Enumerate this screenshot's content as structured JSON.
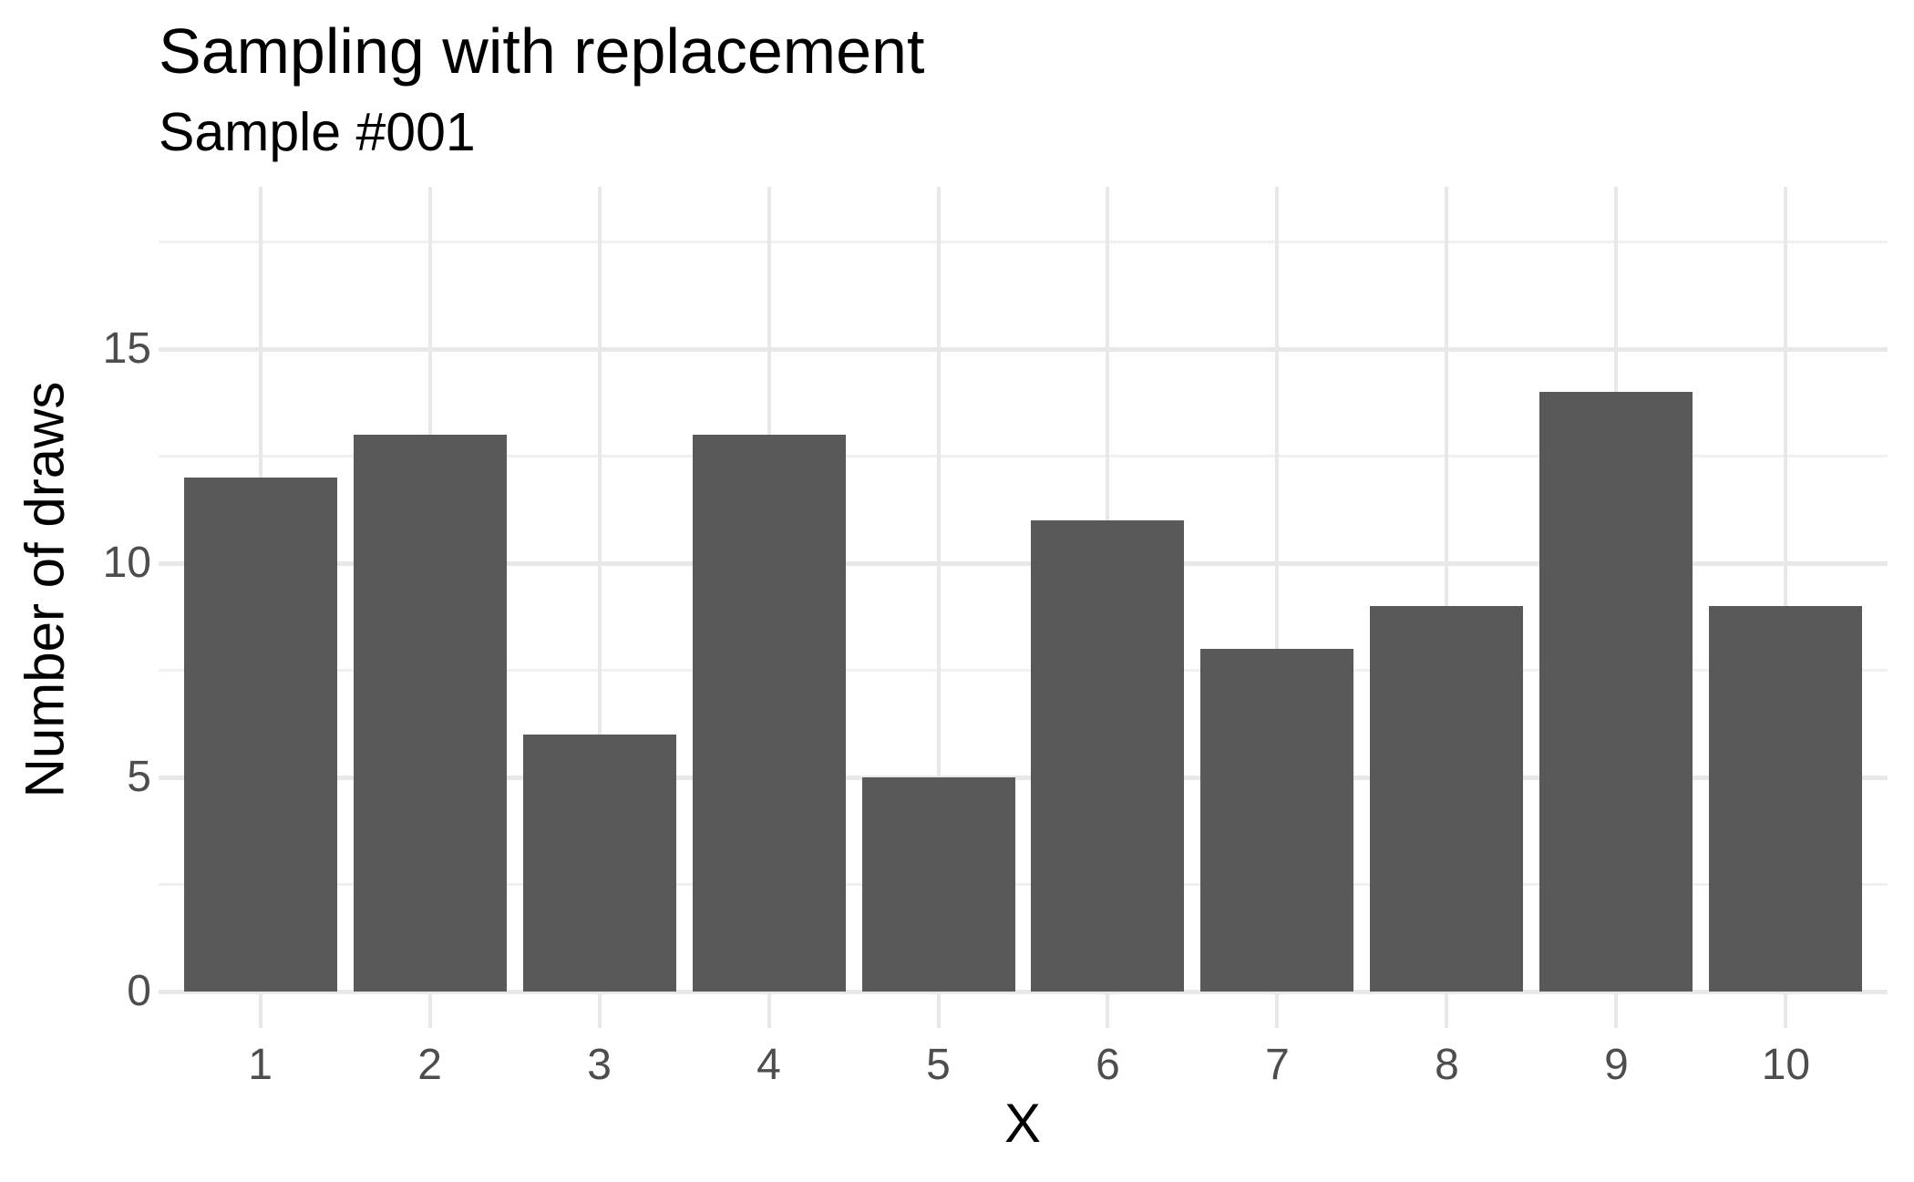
{
  "title": "Sampling with replacement",
  "subtitle": "Sample #001",
  "chart_data": {
    "type": "bar",
    "title": "Sampling with replacement",
    "subtitle": "Sample #001",
    "categories": [
      "1",
      "2",
      "3",
      "4",
      "5",
      "6",
      "7",
      "8",
      "9",
      "10"
    ],
    "values": [
      12,
      13,
      6,
      13,
      5,
      11,
      8,
      9,
      14,
      9
    ],
    "xlabel": "X",
    "ylabel": "Number of draws",
    "ylim": [
      0,
      18.8
    ],
    "yticks": [
      0,
      5,
      10,
      15
    ],
    "yticks_minor": [
      2.5,
      7.5,
      12.5,
      17.5
    ],
    "grid": "on",
    "legend": "none",
    "colors": {
      "bar_fill": "#595959",
      "grid_major": "#E8E8E8",
      "grid_minor": "#F0F0F0",
      "axis_tick": "#E8E8E8",
      "tick_label": "#4D4D4D",
      "title_text": "#000000",
      "background": "#FFFFFF"
    }
  }
}
